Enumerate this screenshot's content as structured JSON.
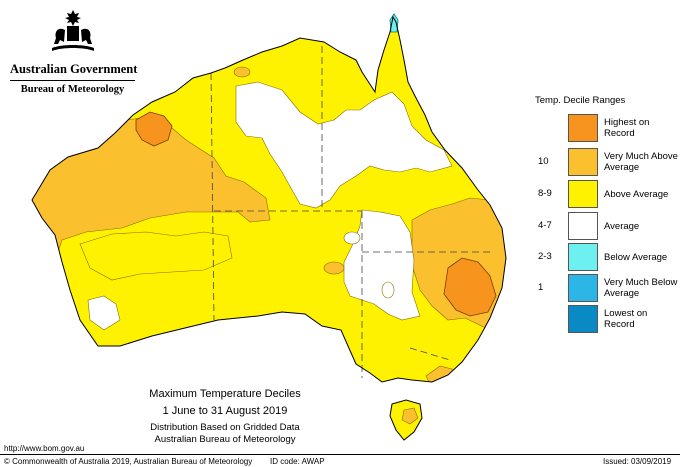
{
  "branding": {
    "government": "Australian Government",
    "bureau": "Bureau of Meteorology",
    "crest": "coat-of-arms-icon"
  },
  "map": {
    "title": "Maximum Temperature Deciles",
    "period": "1 June to 31 August 2019",
    "subtitle_1": "Distribution Based on Gridded Data",
    "subtitle_2": "Australian Bureau of Meteorology",
    "region": "Australia",
    "colors": {
      "highest_on_record": "#f7941d",
      "very_much_above_average": "#fbc02d",
      "above_average": "#fff200",
      "average": "#ffffff",
      "below_average": "#6ff0f0",
      "very_much_below_average": "#2cb6e8",
      "lowest_on_record": "#0a8ac4"
    }
  },
  "legend": {
    "title": "Temp. Decile Ranges",
    "items": [
      {
        "range": "",
        "label": "Highest on Record",
        "color": "#f7941d"
      },
      {
        "range": "10",
        "label": "Very Much Above Average",
        "color": "#fbc02d"
      },
      {
        "range": "8-9",
        "label": "Above Average",
        "color": "#fff200"
      },
      {
        "range": "4-7",
        "label": "Average",
        "color": "#ffffff"
      },
      {
        "range": "2-3",
        "label": "Below Average",
        "color": "#6ff0f0"
      },
      {
        "range": "1",
        "label": "Very Much Below Average",
        "color": "#2cb6e8"
      },
      {
        "range": "",
        "label": "Lowest on Record",
        "color": "#0a8ac4"
      }
    ]
  },
  "footer": {
    "url": "http://www.bom.gov.au",
    "copyright": "© Commonwealth of Australia 2019, Australian Bureau of Meteorology",
    "id_code": "ID code: AWAP",
    "issued": "Issued: 03/09/2019"
  }
}
